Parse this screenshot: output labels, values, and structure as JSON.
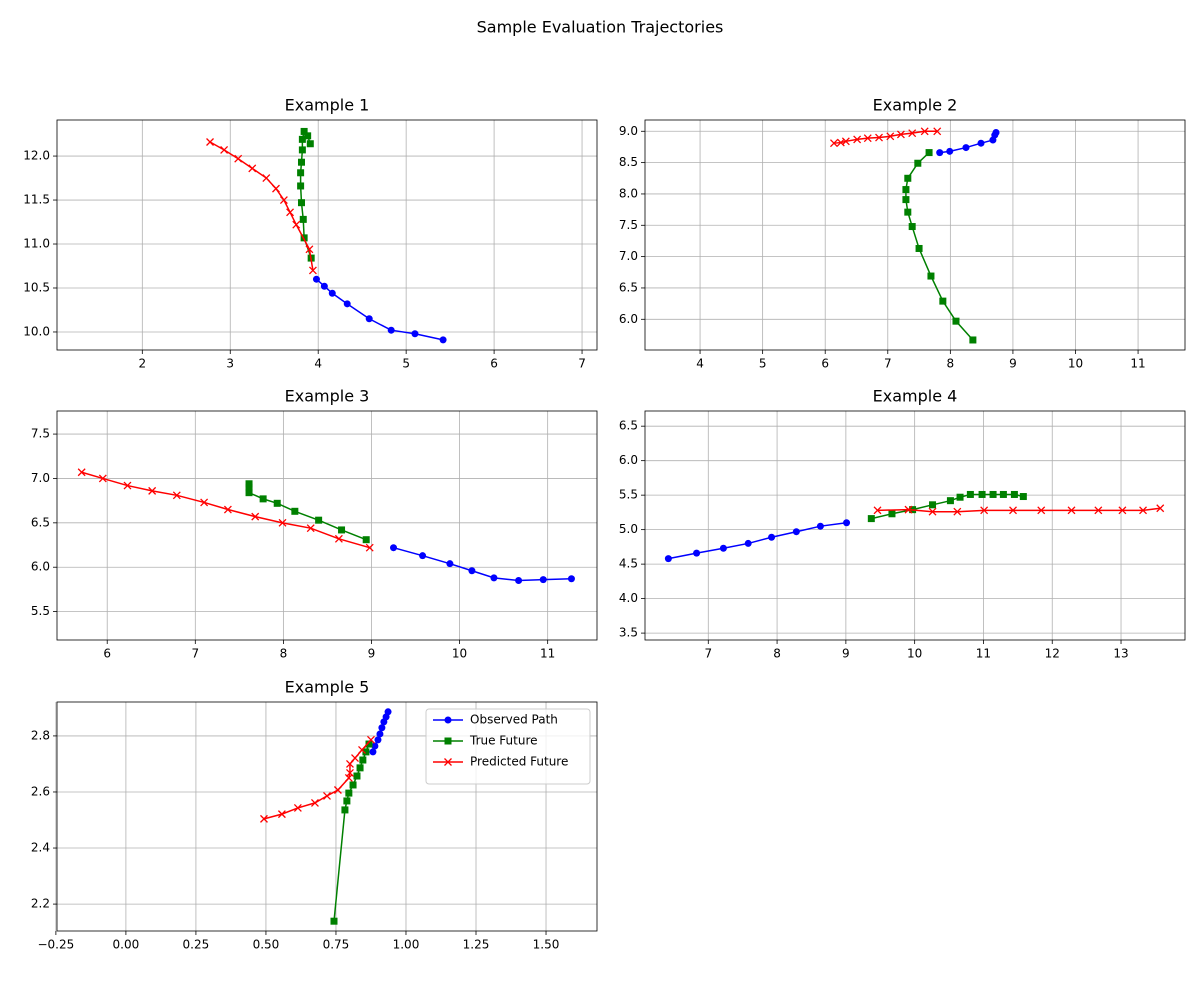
{
  "title": "Sample Evaluation Trajectories",
  "chart_data": [
    {
      "type": "line",
      "title": "Example 1",
      "grid": true,
      "xlim": [
        1.03,
        7.17
      ],
      "ylim": [
        9.795,
        12.41
      ],
      "xticks": [
        2,
        3,
        4,
        5,
        6,
        7
      ],
      "yticks": [
        {
          "value": 10,
          "label": "10.0"
        },
        10.5,
        {
          "value": 11,
          "label": "11.0"
        },
        11.5,
        {
          "value": 12,
          "label": "12.0"
        }
      ],
      "series": [
        {
          "color": "#0000ff",
          "marker": "o",
          "x": [
            5.42,
            5.1,
            4.83,
            4.58,
            4.33,
            4.16,
            4.07,
            3.98
          ],
          "y": [
            9.91,
            9.98,
            10.02,
            10.15,
            10.32,
            10.44,
            10.52,
            10.6
          ]
        },
        {
          "color": "#008000",
          "marker": "s",
          "x": [
            3.92,
            3.84,
            3.83,
            3.81,
            3.8,
            3.8,
            3.81,
            3.82,
            3.82,
            3.84,
            3.88,
            3.91
          ],
          "y": [
            10.84,
            11.07,
            11.28,
            11.47,
            11.66,
            11.81,
            11.93,
            12.07,
            12.19,
            12.28,
            12.23,
            12.14
          ]
        },
        {
          "color": "#ff0000",
          "marker": "x",
          "x": [
            3.94,
            3.9,
            3.75,
            3.68,
            3.61,
            3.52,
            3.41,
            3.25,
            3.09,
            2.93,
            2.77
          ],
          "y": [
            10.7,
            10.94,
            11.22,
            11.36,
            11.5,
            11.63,
            11.75,
            11.86,
            11.97,
            12.07,
            12.16
          ]
        }
      ]
    },
    {
      "type": "line",
      "title": "Example 2",
      "grid": true,
      "xlim": [
        3.12,
        11.75
      ],
      "ylim": [
        5.51,
        9.18
      ],
      "xticks": [
        4,
        5,
        6,
        7,
        8,
        9,
        10,
        11
      ],
      "yticks": [
        {
          "value": 6,
          "label": "6.0"
        },
        6.5,
        {
          "value": 7,
          "label": "7.0"
        },
        7.5,
        {
          "value": 8,
          "label": "8.0"
        },
        8.5,
        {
          "value": 9,
          "label": "9.0"
        }
      ],
      "series": [
        {
          "color": "#0000ff",
          "marker": "o",
          "x": [
            8.73,
            8.71,
            8.68,
            8.49,
            8.25,
            7.99,
            7.83
          ],
          "y": [
            8.98,
            8.94,
            8.86,
            8.81,
            8.74,
            8.68,
            8.66
          ]
        },
        {
          "color": "#008000",
          "marker": "s",
          "x": [
            7.66,
            7.48,
            7.32,
            7.29,
            7.29,
            7.32,
            7.39,
            7.5,
            7.69,
            7.88,
            8.09,
            8.36
          ],
          "y": [
            8.66,
            8.49,
            8.25,
            8.07,
            7.91,
            7.71,
            7.48,
            7.13,
            6.69,
            6.29,
            5.97,
            5.67
          ]
        },
        {
          "color": "#ff0000",
          "marker": "x",
          "x": [
            7.79,
            7.59,
            7.39,
            7.21,
            7.04,
            6.86,
            6.68,
            6.51,
            6.33,
            6.25,
            6.14
          ],
          "y": [
            9.0,
            9.0,
            8.97,
            8.95,
            8.92,
            8.9,
            8.89,
            8.87,
            8.84,
            8.82,
            8.81
          ]
        }
      ]
    },
    {
      "type": "line",
      "title": "Example 3",
      "grid": true,
      "xlim": [
        5.43,
        11.56
      ],
      "ylim": [
        5.18,
        7.76
      ],
      "xticks": [
        6,
        7,
        8,
        9,
        10,
        11
      ],
      "yticks": [
        5.5,
        {
          "value": 6,
          "label": "6.0"
        },
        6.5,
        {
          "value": 7,
          "label": "7.0"
        },
        7.5
      ],
      "series": [
        {
          "color": "#0000ff",
          "marker": "o",
          "x": [
            11.27,
            10.95,
            10.67,
            10.39,
            10.14,
            9.89,
            9.58,
            9.25
          ],
          "y": [
            5.87,
            5.86,
            5.85,
            5.88,
            5.96,
            6.04,
            6.13,
            6.22
          ]
        },
        {
          "color": "#008000",
          "marker": "s",
          "x": [
            8.94,
            8.66,
            8.4,
            8.13,
            7.93,
            7.77,
            7.61,
            7.61,
            7.61
          ],
          "y": [
            6.31,
            6.42,
            6.53,
            6.63,
            6.72,
            6.77,
            6.84,
            6.9,
            6.94
          ]
        },
        {
          "color": "#ff0000",
          "marker": "x",
          "x": [
            8.98,
            8.63,
            8.31,
            7.99,
            7.68,
            7.37,
            7.1,
            6.79,
            6.51,
            6.23,
            5.95,
            5.71
          ],
          "y": [
            6.22,
            6.32,
            6.44,
            6.5,
            6.57,
            6.65,
            6.73,
            6.81,
            6.86,
            6.92,
            7.0,
            7.07
          ]
        }
      ]
    },
    {
      "type": "line",
      "title": "Example 4",
      "grid": true,
      "xlim": [
        6.08,
        13.93
      ],
      "ylim": [
        3.4,
        6.72
      ],
      "xticks": [
        7,
        8,
        9,
        10,
        11,
        12,
        13
      ],
      "yticks": [
        3.5,
        {
          "value": 4,
          "label": "4.0"
        },
        4.5,
        {
          "value": 5,
          "label": "5.0"
        },
        5.5,
        {
          "value": 6,
          "label": "6.0"
        },
        6.5
      ],
      "series": [
        {
          "color": "#0000ff",
          "marker": "o",
          "x": [
            6.42,
            6.83,
            7.22,
            7.58,
            7.92,
            8.28,
            8.63,
            9.01
          ],
          "y": [
            4.58,
            4.66,
            4.73,
            4.8,
            4.89,
            4.97,
            5.05,
            5.1
          ]
        },
        {
          "color": "#008000",
          "marker": "s",
          "x": [
            9.37,
            9.67,
            9.97,
            10.26,
            10.52,
            10.66,
            10.81,
            10.98,
            11.14,
            11.29,
            11.45,
            11.58
          ],
          "y": [
            5.16,
            5.23,
            5.29,
            5.36,
            5.42,
            5.47,
            5.51,
            5.51,
            5.51,
            5.51,
            5.51,
            5.48
          ]
        },
        {
          "color": "#ff0000",
          "marker": "x",
          "x": [
            9.46,
            9.91,
            10.26,
            10.62,
            11.01,
            11.43,
            11.84,
            12.28,
            12.67,
            13.02,
            13.32,
            13.57
          ],
          "y": [
            5.28,
            5.29,
            5.26,
            5.26,
            5.28,
            5.28,
            5.28,
            5.28,
            5.28,
            5.28,
            5.28,
            5.31
          ]
        }
      ]
    },
    {
      "type": "line",
      "title": "Example 5",
      "grid": true,
      "legend": "upper right",
      "xlim": [
        -0.246,
        1.682
      ],
      "ylim": [
        2.104,
        2.921
      ],
      "xticks": [
        {
          "value": -0.25,
          "label": "−0.25"
        },
        {
          "value": 0,
          "label": "0.00"
        },
        0.25,
        {
          "value": 0.5,
          "label": "0.50"
        },
        0.75,
        {
          "value": 1,
          "label": "1.00"
        },
        1.25,
        {
          "value": 1.5,
          "label": "1.50"
        }
      ],
      "yticks": [
        2.2,
        2.4,
        2.6,
        2.8
      ],
      "series": [
        {
          "name": "Observed Path",
          "color": "#0000ff",
          "marker": "o",
          "x": [
            0.936,
            0.929,
            0.921,
            0.914,
            0.907,
            0.9,
            0.889,
            0.882
          ],
          "y": [
            2.886,
            2.868,
            2.85,
            2.829,
            2.807,
            2.786,
            2.764,
            2.743
          ]
        },
        {
          "name": "True Future",
          "color": "#008000",
          "marker": "s",
          "x": [
            0.868,
            0.857,
            0.846,
            0.836,
            0.825,
            0.811,
            0.796,
            0.789,
            0.782,
            0.743
          ],
          "y": [
            2.771,
            2.743,
            2.714,
            2.686,
            2.657,
            2.625,
            2.596,
            2.568,
            2.536,
            2.139
          ]
        },
        {
          "name": "Predicted Future",
          "color": "#ff0000",
          "marker": "x",
          "x": [
            0.875,
            0.843,
            0.818,
            0.8,
            0.8,
            0.796,
            0.757,
            0.718,
            0.675,
            0.614,
            0.557,
            0.493
          ],
          "y": [
            2.786,
            2.75,
            2.721,
            2.7,
            2.668,
            2.65,
            2.607,
            2.586,
            2.561,
            2.543,
            2.521,
            2.504
          ]
        }
      ]
    }
  ]
}
